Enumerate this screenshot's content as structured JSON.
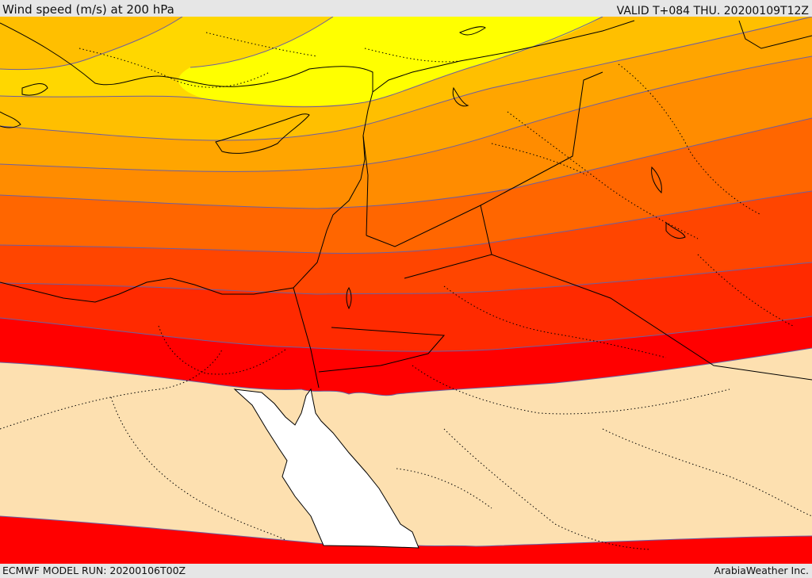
{
  "header": {
    "title": "Wind speed (m/s) at 200 hPa",
    "valid_time": "VALID T+084 THU. 20200109T12Z"
  },
  "footer": {
    "model_run": "ECMWF MODEL RUN: 20200106T00Z",
    "credit": "ArabiaWeather Inc."
  },
  "map": {
    "variable": "wind speed",
    "units": "m/s",
    "level": "200 hPa",
    "shading_colors": [
      "#ffffff",
      "#fde0b0",
      "#ff0000",
      "#ff2a00",
      "#ff4500",
      "#ff6600",
      "#ff8c00",
      "#ffa500",
      "#ffbf00",
      "#ffd700",
      "#ffff00"
    ],
    "contour_color": "#6d5fa0",
    "coastline_color": "#000000",
    "border_style": "dotted"
  }
}
